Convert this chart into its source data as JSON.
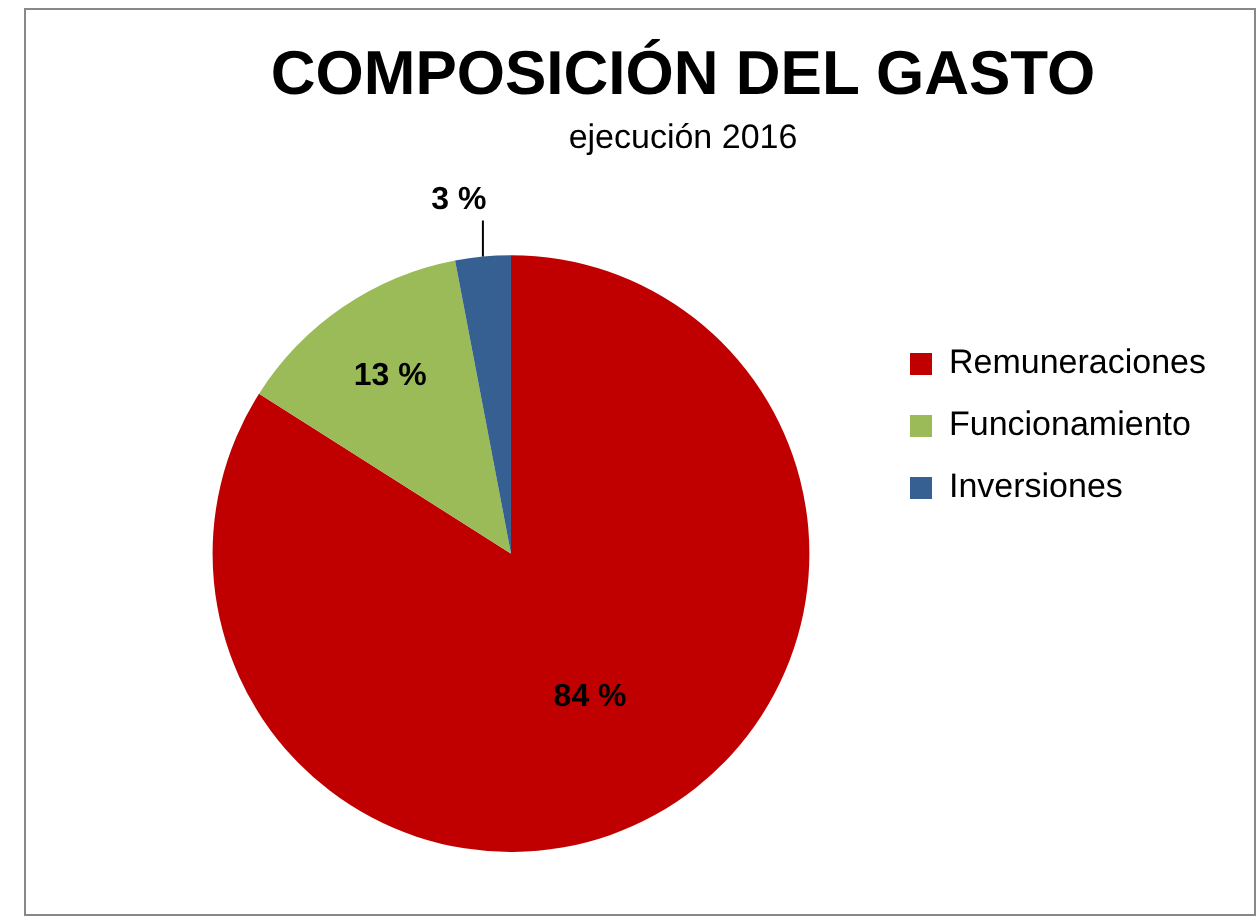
{
  "chart_data": {
    "type": "pie",
    "title": "COMPOSICIÓN DEL GASTO",
    "subtitle": "ejecución 2016",
    "categories": [
      "Remuneraciones",
      "Funcionamiento",
      "Inversiones"
    ],
    "values": [
      84,
      13,
      3
    ],
    "colors": [
      "#c00000",
      "#9bbb59",
      "#376092"
    ],
    "value_labels": [
      "84 %",
      "13 %",
      "3 %"
    ],
    "legend": "right"
  }
}
